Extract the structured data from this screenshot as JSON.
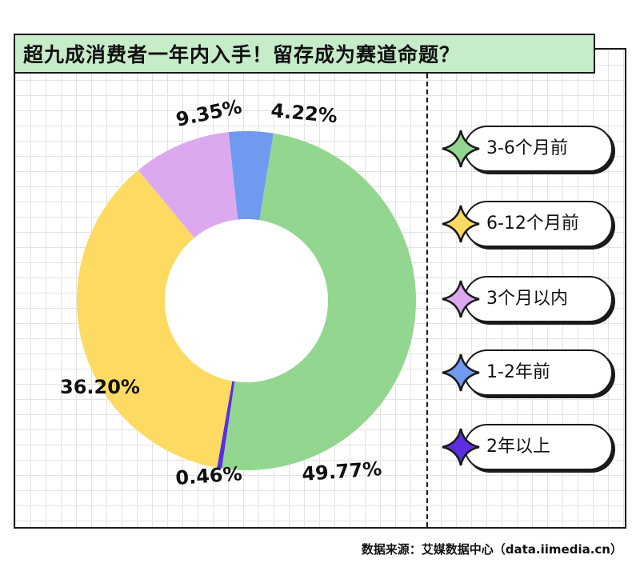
{
  "title": "超九成消费者一年内入手！留存成为赛道命题？",
  "source": "数据来源：艾媒数据中心（data.iimedia.cn）",
  "chart_data": {
    "type": "donut",
    "slices": [
      {
        "label": "3-6个月前",
        "value": 49.77,
        "display": "49.77%",
        "color": "#92d68f"
      },
      {
        "label": "6-12个月前",
        "value": 36.2,
        "display": "36.20%",
        "color": "#fddb63"
      },
      {
        "label": "3个月以内",
        "value": 9.35,
        "display": "9.35%",
        "color": "#dda9ee"
      },
      {
        "label": "1-2年前",
        "value": 4.22,
        "display": "4.22%",
        "color": "#6f9af0"
      },
      {
        "label": "2年以上",
        "value": 0.46,
        "display": "0.46%",
        "color": "#5b2fe0"
      }
    ],
    "draw_order": [
      "3-6个月前",
      "2年以上",
      "6-12个月前",
      "3个月以内",
      "1-2年前"
    ],
    "legend_position": "right"
  }
}
